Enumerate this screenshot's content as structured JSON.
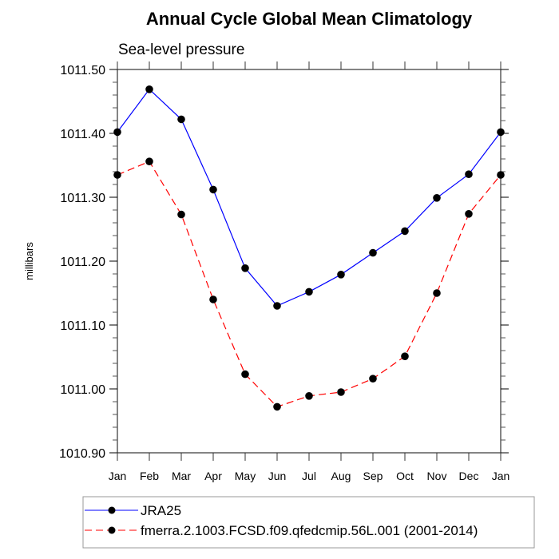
{
  "chart_data": {
    "type": "line",
    "title": "Annual Cycle Global Mean Climatology",
    "subtitle": "Sea-level pressure",
    "xlabel": "",
    "ylabel": "millibars",
    "categories": [
      "Jan",
      "Feb",
      "Mar",
      "Apr",
      "May",
      "Jun",
      "Jul",
      "Aug",
      "Sep",
      "Oct",
      "Nov",
      "Dec",
      "Jan"
    ],
    "ylim": [
      1010.9,
      1011.5
    ],
    "yticks": [
      1011.5,
      1011.4,
      1011.3,
      1011.2,
      1011.1,
      1011.0,
      1010.9
    ],
    "ytick_labels": [
      "1011.50",
      "1011.40",
      "1011.30",
      "1011.20",
      "1011.10",
      "1011.00",
      "1010.90"
    ],
    "yminor_step": 0.02,
    "grid": false,
    "legend_position": "bottom",
    "series": [
      {
        "name": "JRA25",
        "color": "#0000ff",
        "line_style": "solid",
        "marker": "filled-circle",
        "values": [
          1011.402,
          1011.469,
          1011.422,
          1011.312,
          1011.189,
          1011.13,
          1011.152,
          1011.179,
          1011.213,
          1011.247,
          1011.299,
          1011.336,
          1011.402
        ]
      },
      {
        "name": "fmerra.2.1003.FCSD.f09.qfedcmip.56L.001 (2001-2014)",
        "color": "#ff0000",
        "line_style": "dashed",
        "marker": "filled-circle",
        "values": [
          1011.335,
          1011.356,
          1011.273,
          1011.14,
          1011.023,
          1010.972,
          1010.989,
          1010.995,
          1011.016,
          1011.051,
          1011.15,
          1011.274,
          1011.335
        ]
      }
    ]
  }
}
